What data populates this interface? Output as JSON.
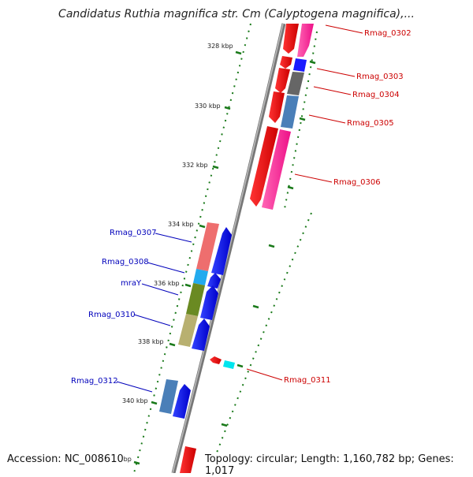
{
  "title": "Candidatus Ruthia magnifica str. Cm (Calyptogena magnifica),...",
  "accession": "Accession: NC_008610",
  "topology": "Topology: circular; Length: 1,160,782 bp; Genes: 1,017",
  "ticks": [
    "328 kbp",
    "330 kbp",
    "332 kbp",
    "334 kbp",
    "336 kbp",
    "338 kbp",
    "340 kbp",
    "kbp"
  ],
  "genes": {
    "Rmag_0302": "Rmag_0302",
    "Rmag_0303": "Rmag_0303",
    "Rmag_0304": "Rmag_0304",
    "Rmag_0305": "Rmag_0305",
    "Rmag_0306": "Rmag_0306",
    "Rmag_0307": "Rmag_0307",
    "Rmag_0308": "Rmag_0308",
    "mraY": "mraY",
    "Rmag_0310": "Rmag_0310",
    "Rmag_0311": "Rmag_0311",
    "Rmag_0312": "Rmag_0312"
  },
  "colors": {
    "backbone": "#888888",
    "tick": "#1a7a1a",
    "forward_label": "#cc0000",
    "reverse_label": "#0000bb"
  }
}
